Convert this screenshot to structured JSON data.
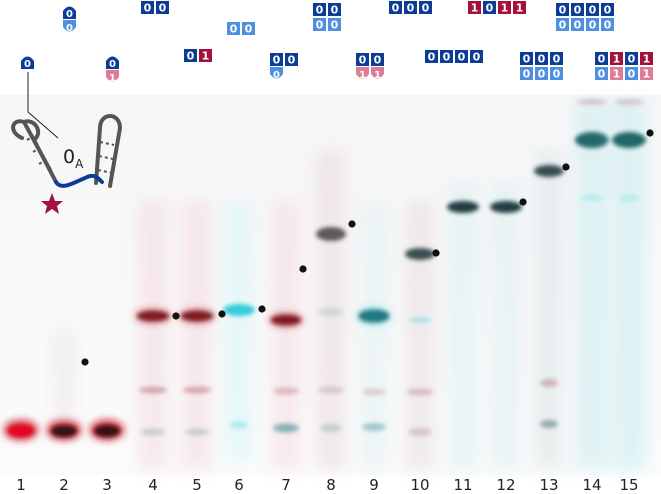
{
  "symbols": {
    "zero": "0",
    "one": "1"
  },
  "colors": {
    "dark_blue": "#0b3c96",
    "light_blue": "#4f8fe0",
    "dark_red": "#a3123d",
    "light_red": "#de7b95",
    "gel_red": "#cc0c1c",
    "gel_cyan": "#14c4d4"
  },
  "lanes": [
    "1",
    "2",
    "3",
    "4",
    "5",
    "6",
    "7",
    "8",
    "9",
    "10",
    "11",
    "12",
    "13",
    "14",
    "15"
  ],
  "annotation": {
    "label_main": "0",
    "label_sub": "A",
    "structure": "hairpin-duplex-with-star-fluorophore"
  },
  "markers": {
    "band_marker": "filled-dot"
  }
}
